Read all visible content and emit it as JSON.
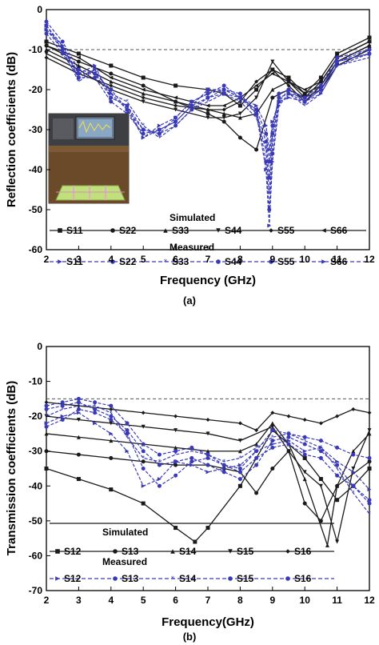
{
  "chart_data": [
    {
      "id": "a",
      "type": "line",
      "caption": "(a)",
      "xlabel": "Frequency (GHz)",
      "ylabel": "Reflection coefficients (dB)",
      "xlim": [
        2,
        12
      ],
      "ylim": [
        -60,
        0
      ],
      "xticks": [
        2,
        3,
        4,
        5,
        6,
        7,
        8,
        9,
        10,
        11,
        12
      ],
      "yticks": [
        0,
        -10,
        -20,
        -30,
        -40,
        -50,
        -60
      ],
      "reference_line_y": -10,
      "legend": {
        "simulated_title": "Simulated",
        "measured_title": "Measured",
        "simulated_labels": [
          "S11",
          "S22",
          "S33",
          "S44",
          "S55",
          "S66"
        ],
        "measured_labels": [
          "S11",
          "S22",
          "S33",
          "S44",
          "S55",
          "S66"
        ]
      },
      "inset": "photo-of-measurement-setup",
      "series_simulated": [
        {
          "x": [
            2,
            3,
            4,
            5,
            6,
            7,
            7.5,
            8,
            8.5,
            9,
            9.5,
            10,
            10.5,
            11,
            12
          ],
          "y": [
            -8,
            -11,
            -14,
            -17,
            -19,
            -20,
            -21,
            -24,
            -20,
            -15,
            -17,
            -21,
            -17,
            -11,
            -7
          ]
        },
        {
          "x": [
            2,
            3,
            4,
            5,
            6,
            7,
            7.5,
            8,
            8.5,
            9,
            9.5,
            10,
            10.5,
            11,
            12
          ],
          "y": [
            -9,
            -13,
            -16,
            -19,
            -23,
            -26,
            -28,
            -32,
            -35,
            -22,
            -20,
            -22,
            -18,
            -12,
            -8
          ]
        },
        {
          "x": [
            2,
            3,
            4,
            5,
            6,
            7,
            7.5,
            8,
            8.5,
            9,
            9.5,
            10,
            10.5,
            11,
            12
          ],
          "y": [
            -10,
            -14,
            -18,
            -21,
            -23,
            -25,
            -26,
            -27,
            -26,
            -20,
            -18,
            -21,
            -19,
            -13,
            -9
          ]
        },
        {
          "x": [
            2,
            3,
            4,
            5,
            6,
            7,
            7.5,
            8,
            8.5,
            9,
            9.5,
            10,
            10.5,
            11,
            12
          ],
          "y": [
            -11,
            -15,
            -20,
            -23,
            -25,
            -27,
            -27,
            -26,
            -22,
            -13,
            -18,
            -22,
            -20,
            -14,
            -10
          ]
        },
        {
          "x": [
            2,
            3,
            4,
            5,
            6,
            7,
            7.5,
            8,
            8.5,
            9,
            9.5,
            10,
            10.5,
            11,
            12
          ],
          "y": [
            -12,
            -16,
            -19,
            -22,
            -24,
            -25,
            -25,
            -23,
            -18,
            -15,
            -19,
            -23,
            -19,
            -13,
            -9
          ]
        },
        {
          "x": [
            2,
            3,
            4,
            5,
            6,
            7,
            7.5,
            8,
            8.5,
            9,
            9.5,
            10,
            10.5,
            11,
            12
          ],
          "y": [
            -9,
            -12,
            -17,
            -20,
            -22,
            -24,
            -24,
            -22,
            -19,
            -16,
            -18,
            -20,
            -18,
            -12,
            -8
          ]
        }
      ],
      "series_measured": [
        {
          "x": [
            2,
            2.5,
            3,
            3.5,
            4,
            4.5,
            5,
            5.5,
            6,
            6.5,
            7,
            7.5,
            8,
            8.5,
            8.8,
            8.9,
            9,
            9.2,
            9.5,
            10,
            10.5,
            11,
            12
          ],
          "y": [
            -4,
            -9,
            -16,
            -14,
            -22,
            -24,
            -32,
            -30,
            -28,
            -24,
            -22,
            -20,
            -22,
            -26,
            -40,
            -54,
            -38,
            -24,
            -21,
            -23,
            -20,
            -13,
            -11
          ]
        },
        {
          "x": [
            2,
            2.5,
            3,
            3.5,
            4,
            4.5,
            5,
            5.5,
            6,
            6.5,
            7,
            7.5,
            8,
            8.5,
            8.8,
            8.9,
            9,
            9.2,
            9.5,
            10,
            10.5,
            11,
            12
          ],
          "y": [
            -3,
            -8,
            -15,
            -16,
            -20,
            -25,
            -30,
            -31,
            -27,
            -23,
            -21,
            -19,
            -22,
            -25,
            -38,
            -50,
            -36,
            -23,
            -20,
            -22,
            -19,
            -12,
            -10
          ]
        },
        {
          "x": [
            2,
            2.5,
            3,
            3.5,
            4,
            4.5,
            5,
            5.5,
            6,
            6.5,
            7,
            7.5,
            8,
            8.5,
            8.8,
            8.9,
            9,
            9.2,
            9.5,
            10,
            10.5,
            11,
            12
          ],
          "y": [
            -5,
            -10,
            -18,
            -15,
            -21,
            -23,
            -29,
            -32,
            -29,
            -25,
            -23,
            -21,
            -23,
            -27,
            -35,
            -46,
            -33,
            -22,
            -21,
            -24,
            -21,
            -14,
            -12
          ]
        },
        {
          "x": [
            2,
            2.5,
            3,
            3.5,
            4,
            4.5,
            5,
            5.5,
            6,
            6.5,
            7,
            7.5,
            8,
            8.5,
            8.8,
            8.9,
            9,
            9.2,
            9.5,
            10,
            10.5,
            11,
            12
          ],
          "y": [
            -6,
            -11,
            -17,
            -17,
            -23,
            -26,
            -31,
            -30,
            -28,
            -24,
            -20,
            -20,
            -21,
            -26,
            -33,
            -42,
            -31,
            -21,
            -20,
            -23,
            -20,
            -13,
            -11
          ]
        },
        {
          "x": [
            2,
            2.5,
            3,
            3.5,
            4,
            4.5,
            5,
            5.5,
            6,
            6.5,
            7,
            7.5,
            8,
            8.5,
            8.8,
            8.9,
            9,
            9.2,
            9.5,
            10,
            10.5,
            11,
            12
          ],
          "y": [
            -4,
            -10,
            -16,
            -16,
            -22,
            -24,
            -30,
            -31,
            -29,
            -25,
            -22,
            -21,
            -22,
            -25,
            -31,
            -38,
            -29,
            -22,
            -21,
            -22,
            -20,
            -13,
            -10
          ]
        },
        {
          "x": [
            2,
            2.5,
            3,
            3.5,
            4,
            4.5,
            5,
            5.5,
            6,
            6.5,
            7,
            7.5,
            8,
            8.5,
            8.8,
            8.9,
            9,
            9.2,
            9.5,
            10,
            10.5,
            11,
            12
          ],
          "y": [
            -5,
            -9,
            -17,
            -15,
            -21,
            -25,
            -32,
            -29,
            -27,
            -23,
            -21,
            -20,
            -22,
            -24,
            -29,
            -35,
            -28,
            -23,
            -22,
            -23,
            -21,
            -14,
            -11
          ]
        }
      ]
    },
    {
      "id": "b",
      "type": "line",
      "caption": "(b)",
      "xlabel": "Frequency(GHz)",
      "ylabel": "Transmission coefficients (dB)",
      "xlim": [
        2,
        12
      ],
      "ylim": [
        -70,
        0
      ],
      "xticks": [
        2,
        3,
        4,
        5,
        6,
        7,
        8,
        9,
        10,
        11,
        12
      ],
      "yticks": [
        0,
        -10,
        -20,
        -30,
        -40,
        -50,
        -60,
        -70
      ],
      "reference_line_y": -15,
      "legend": {
        "simulated_title": "Simulated",
        "measured_title": "Measured",
        "simulated_labels": [
          "S12",
          "S13",
          "S14",
          "S15",
          "S16"
        ],
        "measured_labels": [
          "S12",
          "S13",
          "S14",
          "S15",
          "S16"
        ]
      },
      "series_simulated": [
        {
          "x": [
            2,
            3,
            4,
            5,
            6,
            6.6,
            7,
            8,
            9,
            10,
            10.5,
            11,
            11.5,
            12
          ],
          "y": [
            -35,
            -38,
            -41,
            -45,
            -52,
            -56,
            -52,
            -40,
            -24,
            -32,
            -38,
            -44,
            -40,
            -35
          ]
        },
        {
          "x": [
            2,
            3,
            4,
            5,
            6,
            7,
            7.5,
            8,
            8.5,
            9,
            9.5,
            10,
            10.5,
            11,
            12
          ],
          "y": [
            -30,
            -31,
            -32,
            -33,
            -34,
            -34,
            -35,
            -36,
            -42,
            -35,
            -30,
            -45,
            -50,
            -40,
            -33
          ]
        },
        {
          "x": [
            2,
            3,
            4,
            5,
            6,
            7,
            8,
            8.5,
            9,
            9.5,
            10,
            10.7,
            11,
            11.5,
            12
          ],
          "y": [
            -25,
            -26,
            -27,
            -28,
            -29,
            -30,
            -30,
            -28,
            -22,
            -28,
            -38,
            -57,
            -40,
            -30,
            -25
          ]
        },
        {
          "x": [
            2,
            3,
            4,
            5,
            6,
            7,
            8,
            9,
            9.5,
            10,
            10.5,
            11,
            11.5,
            12
          ],
          "y": [
            -20,
            -21,
            -22,
            -23,
            -24,
            -25,
            -27,
            -23,
            -30,
            -36,
            -40,
            -56,
            -35,
            -24
          ]
        },
        {
          "x": [
            2,
            3,
            4,
            5,
            6,
            7,
            8,
            8.5,
            9,
            9.5,
            10,
            10.5,
            11,
            11.5,
            12
          ],
          "y": [
            -16,
            -17,
            -18,
            -19,
            -20,
            -21,
            -22,
            -24,
            -19,
            -20,
            -21,
            -22,
            -20,
            -18,
            -19
          ]
        }
      ],
      "series_measured": [
        {
          "x": [
            2,
            2.5,
            3,
            3.5,
            4,
            4.5,
            5,
            5.5,
            6,
            6.5,
            7,
            7.5,
            8,
            8.5,
            9,
            9.5,
            10,
            10.5,
            11,
            11.5,
            12
          ],
          "y": [
            -22,
            -20,
            -19,
            -22,
            -25,
            -30,
            -40,
            -38,
            -33,
            -34,
            -36,
            -35,
            -34,
            -30,
            -28,
            -27,
            -30,
            -29,
            -33,
            -36,
            -41
          ]
        },
        {
          "x": [
            2,
            2.5,
            3,
            3.5,
            4,
            4.5,
            5,
            5.5,
            6,
            6.5,
            7,
            7.5,
            8,
            8.5,
            9,
            9.5,
            10,
            10.5,
            11,
            11.5,
            12
          ],
          "y": [
            -18,
            -17,
            -16,
            -18,
            -20,
            -24,
            -30,
            -34,
            -33,
            -32,
            -34,
            -36,
            -38,
            -34,
            -27,
            -26,
            -28,
            -30,
            -34,
            -40,
            -45
          ]
        },
        {
          "x": [
            2,
            2.5,
            3,
            3.5,
            4,
            4.5,
            5,
            5.5,
            6,
            6.5,
            7,
            7.5,
            8,
            8.5,
            9,
            9.5,
            10,
            10.5,
            11,
            11.5,
            12
          ],
          "y": [
            -20,
            -18,
            -17,
            -17,
            -19,
            -26,
            -32,
            -33,
            -31,
            -30,
            -31,
            -33,
            -32,
            -29,
            -26,
            -25,
            -27,
            -29,
            -35,
            -42,
            -48
          ]
        },
        {
          "x": [
            2,
            2.5,
            3,
            3.5,
            4,
            4.5,
            5,
            5.5,
            6,
            6.5,
            7,
            7.5,
            8,
            8.5,
            9,
            9.5,
            10,
            10.5,
            11,
            11.5,
            12
          ],
          "y": [
            -23,
            -21,
            -18,
            -19,
            -21,
            -25,
            -35,
            -40,
            -37,
            -33,
            -32,
            -34,
            -36,
            -32,
            -29,
            -28,
            -31,
            -32,
            -37,
            -40,
            -44
          ]
        },
        {
          "x": [
            2,
            2.5,
            3,
            3.5,
            4,
            4.5,
            5,
            5.5,
            6,
            6.5,
            7,
            7.5,
            8,
            8.5,
            9,
            9.5,
            10,
            10.5,
            11,
            11.5,
            12
          ],
          "y": [
            -17,
            -16,
            -15,
            -16,
            -17,
            -22,
            -28,
            -31,
            -30,
            -29,
            -31,
            -34,
            -35,
            -30,
            -24,
            -25,
            -26,
            -27,
            -29,
            -31,
            -32
          ]
        }
      ]
    }
  ],
  "colors": {
    "simulated": "#1a1a1a",
    "measured": "#3a3ab8",
    "reference_line": "#555555"
  }
}
